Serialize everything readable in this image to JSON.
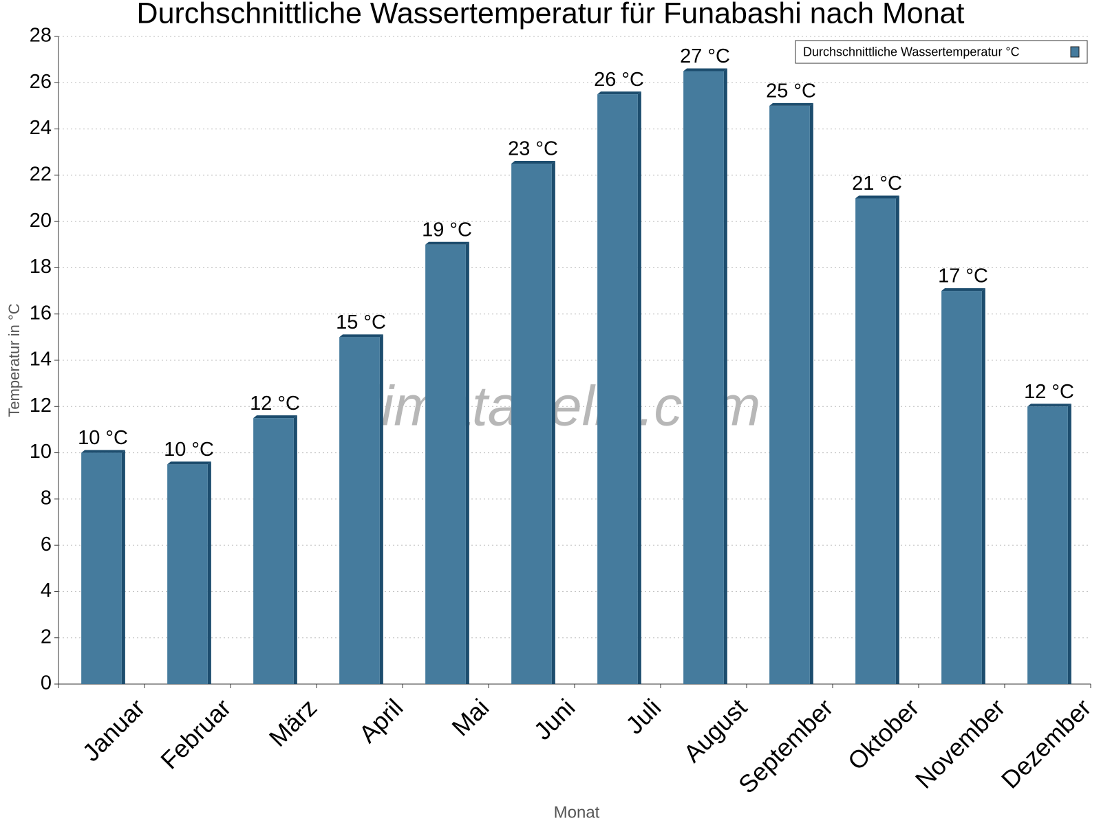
{
  "chart_data": {
    "type": "bar",
    "title": "Durchschnittliche Wassertemperatur für Funabashi nach Monat",
    "x_label": "Monat",
    "y_label": "Temperatur in °C",
    "watermark": "klimatabelle.com",
    "categories": [
      "Januar",
      "Februar",
      "März",
      "April",
      "Mai",
      "Juni",
      "Juli",
      "August",
      "September",
      "Oktober",
      "November",
      "Dezember"
    ],
    "series": [
      {
        "name": "Durchschnittliche Wassertemperatur °C",
        "color": "#457b9d",
        "values": [
          10,
          9.5,
          11.5,
          15,
          19,
          22.5,
          25.5,
          26.5,
          25,
          21,
          17,
          12
        ],
        "value_labels": [
          "10 °C",
          "10 °C",
          "12 °C",
          "15 °C",
          "19 °C",
          "23 °C",
          "26 °C",
          "27 °C",
          "25 °C",
          "21 °C",
          "17 °C",
          "12 °C"
        ]
      }
    ],
    "ylim": [
      0,
      28
    ],
    "yticks": [
      0,
      2,
      4,
      6,
      8,
      10,
      12,
      14,
      16,
      18,
      20,
      22,
      24,
      26,
      28
    ],
    "grid": true,
    "legend": "top-right"
  }
}
